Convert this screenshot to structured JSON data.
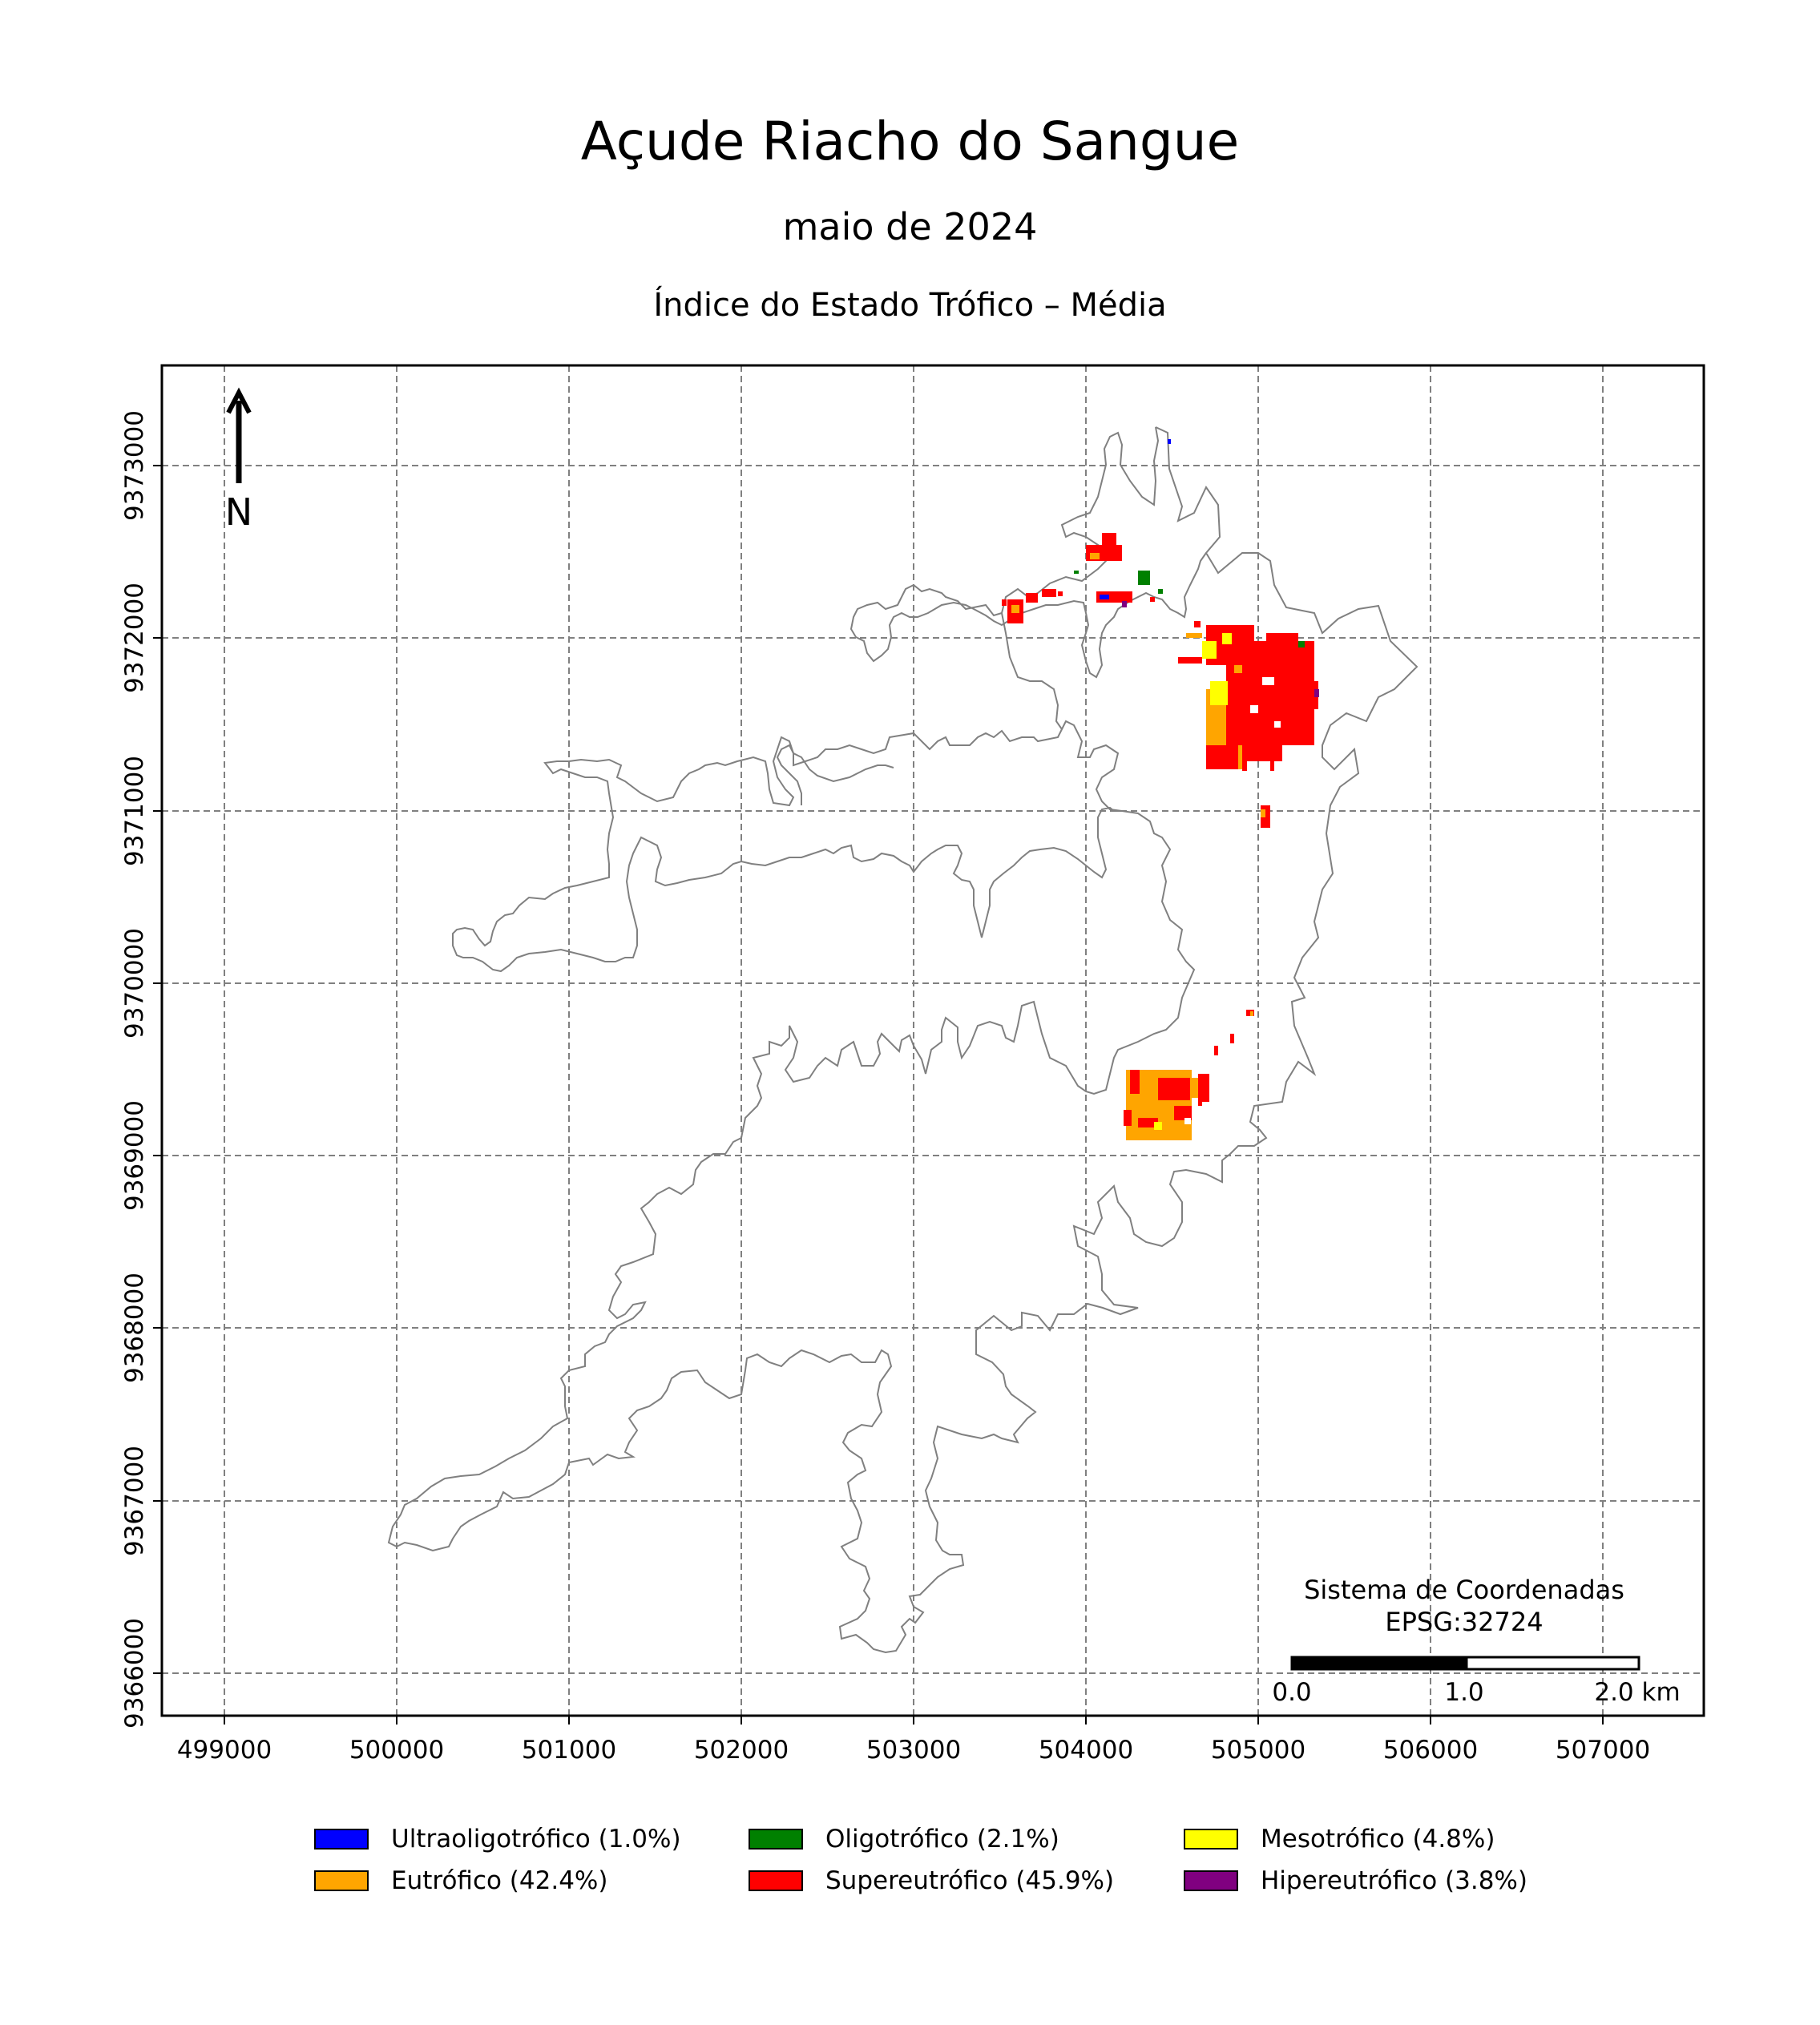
{
  "title": "Açude Riacho do Sangue",
  "subtitle": "maio de 2024",
  "subsubtitle": "Índice do Estado Trófico – Média",
  "north_arrow": {
    "label": "N"
  },
  "axes": {
    "x_ticks": [
      "499000",
      "500000",
      "501000",
      "502000",
      "503000",
      "504000",
      "505000",
      "506000",
      "507000"
    ],
    "y_ticks": [
      "9366000",
      "9367000",
      "9368000",
      "9369000",
      "9370000",
      "9371000",
      "9372000",
      "9373000"
    ]
  },
  "crs": {
    "line1": "Sistema de Coordenadas",
    "line2": "EPSG:32724"
  },
  "scalebar": {
    "labels": [
      "0.0",
      "1.0",
      "2.0 km"
    ]
  },
  "legend": [
    {
      "label": "Ultraoligotrófico (1.0%)",
      "color": "#0000ff"
    },
    {
      "label": "Oligotrófico (2.1%)",
      "color": "#008000"
    },
    {
      "label": "Mesotrófico (4.8%)",
      "color": "#ffff00"
    },
    {
      "label": "Eutrófico (42.4%)",
      "color": "#ffa500"
    },
    {
      "label": "Supereutrófico (45.9%)",
      "color": "#ff0000"
    },
    {
      "label": "Hipereutrófico (3.8%)",
      "color": "#800080"
    }
  ]
}
